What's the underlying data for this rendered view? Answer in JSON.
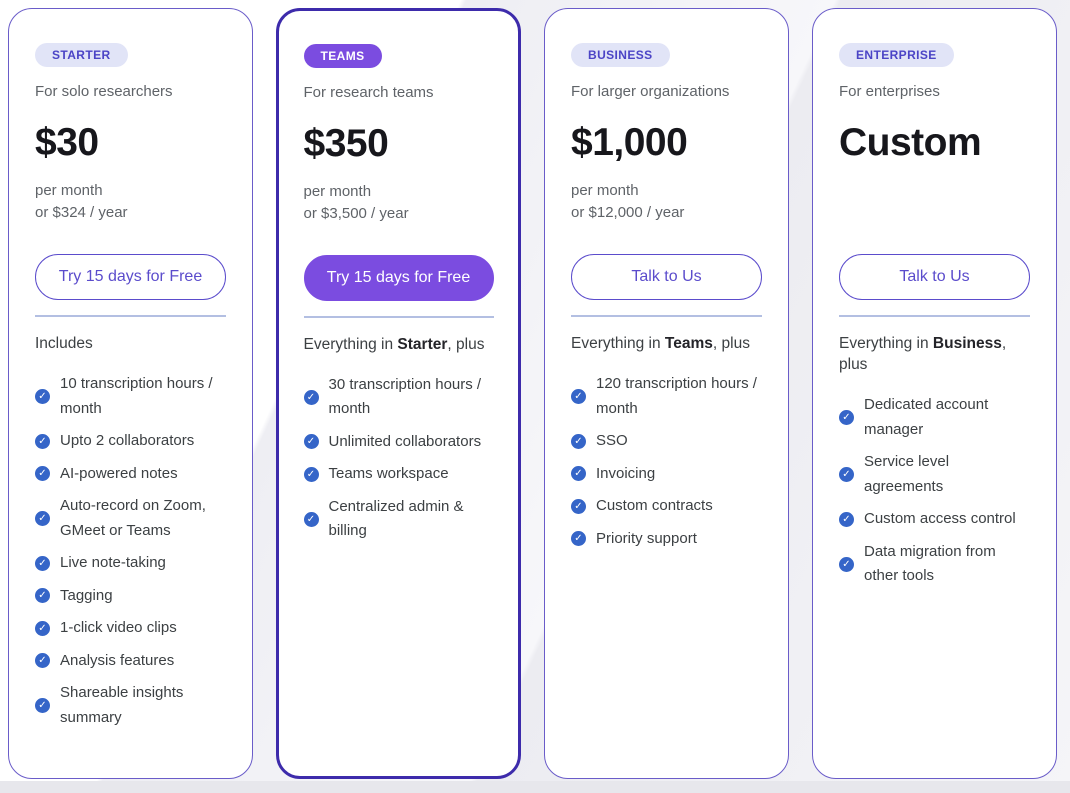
{
  "colors": {
    "accent_purple": "#7b4ce0",
    "highlight_card_border": "#3d2bab",
    "card_border": "#6a5cc9",
    "badge_bg": "#e1e4f7",
    "badge_text": "#4b44c6",
    "cta_outline": "#5b4ccc",
    "check_blue": "#3565c8",
    "divider": "#b3bfe2",
    "price_text": "#17171c",
    "muted_text": "#5f6368",
    "feature_text": "#3c4043"
  },
  "icons": {
    "feature_bullet": "check-circle-icon",
    "check_glyph": "✓"
  },
  "plans": [
    {
      "badge": "STARTER",
      "description": "For solo researchers",
      "price": "$30",
      "period_line1": "per month",
      "period_line2": "or $324 / year",
      "cta_label": "Try 15 days for Free",
      "intro": {
        "prefix": "Includes",
        "bold": "",
        "suffix": ""
      },
      "features": [
        "10 transcription hours / month",
        "Upto 2 collaborators",
        "AI-powered notes",
        "Auto-record on Zoom, GMeet or Teams",
        "Live note-taking",
        "Tagging",
        "1-click video clips",
        "Analysis features",
        "Shareable insights summary"
      ]
    },
    {
      "badge": "TEAMS",
      "description": "For research teams",
      "price": "$350",
      "period_line1": "per month",
      "period_line2": "or $3,500 / year",
      "cta_label": "Try 15 days for Free",
      "intro": {
        "prefix": "Everything in ",
        "bold": "Starter",
        "suffix": ", plus"
      },
      "features": [
        "30 transcription hours / month",
        "Unlimited collaborators",
        "Teams workspace",
        "Centralized admin & billing"
      ]
    },
    {
      "badge": "BUSINESS",
      "description": "For larger organizations",
      "price": "$1,000",
      "period_line1": "per month",
      "period_line2": "or $12,000 / year",
      "cta_label": "Talk to Us",
      "intro": {
        "prefix": "Everything in ",
        "bold": "Teams",
        "suffix": ", plus"
      },
      "features": [
        "120 transcription hours / month",
        "SSO",
        "Invoicing",
        "Custom contracts",
        "Priority support"
      ]
    },
    {
      "badge": "ENTERPRISE",
      "description": "For enterprises",
      "price": "Custom",
      "period_line1": "",
      "period_line2": "",
      "cta_label": "Talk to Us",
      "intro": {
        "prefix": "Everything in ",
        "bold": "Business",
        "suffix": ", plus"
      },
      "features": [
        "Dedicated account manager",
        "Service level agreements",
        "Custom access control",
        "Data migration from other tools"
      ]
    }
  ]
}
